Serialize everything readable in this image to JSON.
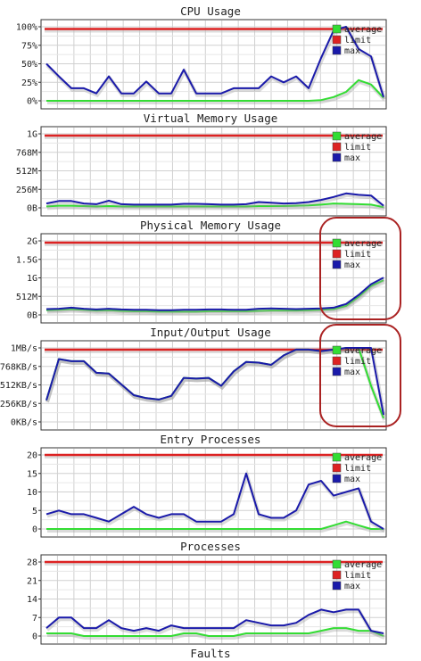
{
  "legend_labels": {
    "average": "average",
    "limit": "limit",
    "max": "max"
  },
  "colors": {
    "average": "#33dd33",
    "limit": "#dd2222",
    "max": "#1a1aaa",
    "grid": "#d0d0d0",
    "border": "#333333",
    "highlight": "#aa2222"
  },
  "chart_data": [
    {
      "type": "line",
      "title": "CPU Usage",
      "ylim": [
        0,
        100
      ],
      "yticks": [
        0,
        25,
        50,
        75,
        100
      ],
      "yticklabels": [
        "0%",
        "25%",
        "50%",
        "75%",
        "100%"
      ],
      "grid": true,
      "legend": "top-right",
      "limit": 97,
      "series": [
        {
          "name": "average",
          "values": [
            0,
            0,
            0,
            0,
            0,
            0,
            0,
            0,
            0,
            0,
            0,
            0,
            0,
            0,
            0,
            0,
            0,
            0,
            0,
            0,
            0,
            0,
            1,
            5,
            12,
            28,
            22,
            4
          ]
        },
        {
          "name": "max",
          "values": [
            50,
            33,
            17,
            17,
            10,
            33,
            10,
            10,
            26,
            10,
            10,
            42,
            10,
            10,
            10,
            17,
            17,
            17,
            33,
            25,
            33,
            17,
            58,
            95,
            100,
            70,
            60,
            5
          ]
        }
      ],
      "highlight": false
    },
    {
      "type": "line",
      "title": "Virtual Memory Usage",
      "ylim": [
        0,
        1024
      ],
      "yticks": [
        0,
        256,
        512,
        768,
        1024
      ],
      "yticklabels": [
        "0B",
        "256M",
        "512M",
        "768M",
        "1G"
      ],
      "grid": true,
      "legend": "top-right",
      "limit": 1000,
      "series": [
        {
          "name": "average",
          "values": [
            20,
            30,
            30,
            25,
            20,
            25,
            20,
            20,
            20,
            20,
            20,
            20,
            20,
            20,
            20,
            20,
            20,
            25,
            25,
            25,
            30,
            35,
            45,
            60,
            55,
            50,
            45,
            10
          ]
        },
        {
          "name": "max",
          "values": [
            60,
            95,
            95,
            60,
            50,
            100,
            50,
            45,
            45,
            45,
            45,
            55,
            55,
            50,
            45,
            45,
            50,
            80,
            70,
            60,
            65,
            80,
            110,
            150,
            200,
            180,
            170,
            30
          ]
        }
      ],
      "highlight": false
    },
    {
      "type": "line",
      "title": "Physical Memory Usage",
      "ylim": [
        0,
        2048
      ],
      "yticks": [
        0,
        512,
        1024,
        1536,
        2048
      ],
      "yticklabels": [
        "0B",
        "512M",
        "1G",
        "1.5G",
        "2G"
      ],
      "grid": true,
      "legend": "top-right",
      "limit": 2000,
      "series": [
        {
          "name": "average",
          "values": [
            130,
            140,
            160,
            140,
            120,
            130,
            110,
            100,
            100,
            90,
            90,
            90,
            90,
            100,
            100,
            100,
            100,
            110,
            120,
            120,
            120,
            130,
            140,
            160,
            250,
            500,
            800,
            960
          ]
        },
        {
          "name": "max",
          "values": [
            160,
            170,
            200,
            170,
            150,
            170,
            150,
            140,
            140,
            130,
            130,
            140,
            140,
            150,
            150,
            140,
            140,
            170,
            180,
            170,
            160,
            170,
            180,
            200,
            300,
            550,
            850,
            1030
          ]
        }
      ],
      "highlight": true
    },
    {
      "type": "line",
      "title": "Input/Output Usage",
      "ylim": [
        0,
        1024
      ],
      "yticks": [
        0,
        256,
        512,
        768,
        1024
      ],
      "yticklabels": [
        "0KB/s",
        "256KB/s",
        "512KB/s",
        "768KB/s",
        "1MB/s"
      ],
      "grid": true,
      "legend": "top-right",
      "limit": 1000,
      "series": [
        {
          "name": "average",
          "values": [
            300,
            870,
            840,
            840,
            680,
            670,
            520,
            370,
            330,
            310,
            360,
            610,
            600,
            610,
            500,
            700,
            830,
            820,
            790,
            920,
            1000,
            1000,
            980,
            1000,
            1024,
            1024,
            500,
            50
          ]
        },
        {
          "name": "max",
          "values": [
            300,
            870,
            840,
            840,
            680,
            670,
            520,
            370,
            330,
            310,
            360,
            610,
            600,
            610,
            500,
            700,
            830,
            820,
            790,
            920,
            1000,
            1000,
            980,
            1000,
            1024,
            1024,
            1024,
            100
          ]
        }
      ],
      "highlight": true
    },
    {
      "type": "line",
      "title": "Entry Processes",
      "ylim": [
        0,
        20
      ],
      "yticks": [
        0,
        5,
        10,
        15,
        20
      ],
      "yticklabels": [
        "0",
        "5",
        "10",
        "15",
        "20"
      ],
      "grid": true,
      "legend": "top-right",
      "limit": 20,
      "series": [
        {
          "name": "average",
          "values": [
            0,
            0,
            0,
            0,
            0,
            0,
            0,
            0,
            0,
            0,
            0,
            0,
            0,
            0,
            0,
            0,
            0,
            0,
            0,
            0,
            0,
            0,
            0,
            1,
            2,
            1,
            0,
            0
          ]
        },
        {
          "name": "max",
          "values": [
            4,
            5,
            4,
            4,
            3,
            2,
            4,
            6,
            4,
            3,
            4,
            4,
            2,
            2,
            2,
            4,
            15,
            4,
            3,
            3,
            5,
            12,
            13,
            9,
            10,
            11,
            2,
            0
          ]
        }
      ],
      "highlight": false
    },
    {
      "type": "line",
      "title": "Processes",
      "ylim": [
        0,
        28
      ],
      "yticks": [
        0,
        7,
        14,
        21,
        28
      ],
      "yticklabels": [
        "0",
        "7",
        "14",
        "21",
        "28"
      ],
      "grid": true,
      "legend": "top-right",
      "limit": 28,
      "series": [
        {
          "name": "average",
          "values": [
            1,
            1,
            1,
            0,
            0,
            0,
            0,
            0,
            0,
            0,
            0,
            1,
            1,
            0,
            0,
            0,
            1,
            1,
            1,
            1,
            1,
            1,
            2,
            3,
            3,
            2,
            2,
            0
          ]
        },
        {
          "name": "max",
          "values": [
            3,
            7,
            7,
            3,
            3,
            6,
            3,
            2,
            3,
            2,
            4,
            3,
            3,
            3,
            3,
            3,
            6,
            5,
            4,
            4,
            5,
            8,
            10,
            9,
            10,
            10,
            2,
            1
          ]
        }
      ],
      "highlight": false
    },
    {
      "type": "line",
      "title": "Faults",
      "series": []
    }
  ]
}
